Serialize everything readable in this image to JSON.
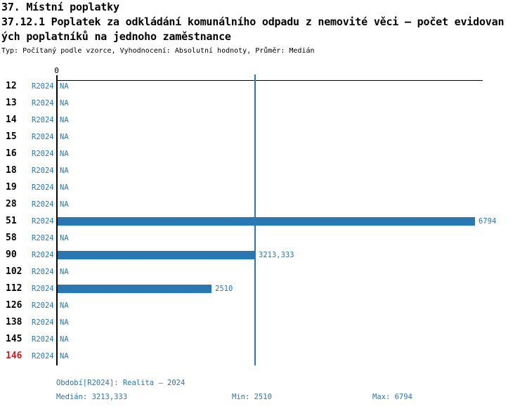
{
  "header": {
    "category_title": "37. Místní poplatky",
    "indicator_title_line1": "37.12.1 Poplatek za odkládání komunálního odpadu z nemovité věci – počet evidovan",
    "indicator_title_line2": "ých poplatníků na jednoho zaměstnance",
    "meta": "Typ: Počítaný podle vzorce, Vyhodnocení: Absolutní hodnoty, Průměr: Medián"
  },
  "chart_data": {
    "type": "bar",
    "orientation": "horizontal",
    "series_name": "R2024",
    "axis_zero_label": "0",
    "na_text": "NA",
    "xlim": [
      0,
      6900
    ],
    "median_value": 3213.333,
    "min_value": 2510,
    "max_value": 6794,
    "bar_color": "#2878b5",
    "median_line_color": "#2878b5",
    "text_color": "#2878b5",
    "highlight_color": "#e0181e",
    "rows": [
      {
        "category": "12",
        "period": "R2024",
        "value": null,
        "display": "NA",
        "highlight": false
      },
      {
        "category": "13",
        "period": "R2024",
        "value": null,
        "display": "NA",
        "highlight": false
      },
      {
        "category": "14",
        "period": "R2024",
        "value": null,
        "display": "NA",
        "highlight": false
      },
      {
        "category": "15",
        "period": "R2024",
        "value": null,
        "display": "NA",
        "highlight": false
      },
      {
        "category": "16",
        "period": "R2024",
        "value": null,
        "display": "NA",
        "highlight": false
      },
      {
        "category": "18",
        "period": "R2024",
        "value": null,
        "display": "NA",
        "highlight": false
      },
      {
        "category": "19",
        "period": "R2024",
        "value": null,
        "display": "NA",
        "highlight": false
      },
      {
        "category": "28",
        "period": "R2024",
        "value": null,
        "display": "NA",
        "highlight": false
      },
      {
        "category": "51",
        "period": "R2024",
        "value": 6794,
        "display": "6794",
        "highlight": false
      },
      {
        "category": "58",
        "period": "R2024",
        "value": null,
        "display": "NA",
        "highlight": false
      },
      {
        "category": "90",
        "period": "R2024",
        "value": 3213.333,
        "display": "3213,333",
        "highlight": false
      },
      {
        "category": "102",
        "period": "R2024",
        "value": null,
        "display": "NA",
        "highlight": false
      },
      {
        "category": "112",
        "period": "R2024",
        "value": 2510,
        "display": "2510",
        "highlight": false
      },
      {
        "category": "126",
        "period": "R2024",
        "value": null,
        "display": "NA",
        "highlight": false
      },
      {
        "category": "138",
        "period": "R2024",
        "value": null,
        "display": "NA",
        "highlight": false
      },
      {
        "category": "145",
        "period": "R2024",
        "value": null,
        "display": "NA",
        "highlight": false
      },
      {
        "category": "146",
        "period": "R2024",
        "value": null,
        "display": "NA",
        "highlight": true
      }
    ]
  },
  "footer": {
    "period_label": "Období[R2024]: Realita – 2024",
    "median_label": "Medián: 3213,333",
    "min_label": "Min: 2510",
    "max_label": "Max: 6794"
  }
}
